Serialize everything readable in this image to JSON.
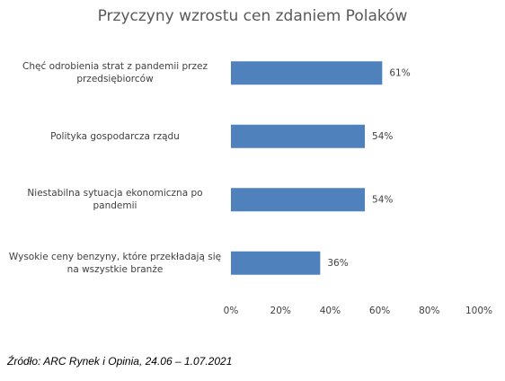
{
  "chart_data": {
    "type": "bar",
    "orientation": "horizontal",
    "title": "Przyczyny wzrostu cen zdaniem Polaków",
    "categories": [
      "Chęć odrobienia  strat z pandemii przez przedsiębiorców",
      "Polityka gospodarcza rządu",
      "Niestabilna sytuacja ekonomiczna po pandemii",
      "Wysokie ceny benzyny, które przekładają się na wszystkie branże"
    ],
    "values": [
      61,
      54,
      54,
      36
    ],
    "value_labels": [
      "61%",
      "54%",
      "54%",
      "36%"
    ],
    "color": "#4f81bd",
    "xlim": [
      0,
      100
    ],
    "xticks": [
      {
        "value": 0,
        "label": "0%"
      },
      {
        "value": 20,
        "label": "20%"
      },
      {
        "value": 40,
        "label": "40%"
      },
      {
        "value": 60,
        "label": "60%"
      },
      {
        "value": 80,
        "label": "80%"
      },
      {
        "value": 100,
        "label": "100%"
      }
    ],
    "grid": false,
    "source": "Źródło: ARC Rynek i Opinia, 24.06 – 1.07.2021"
  }
}
